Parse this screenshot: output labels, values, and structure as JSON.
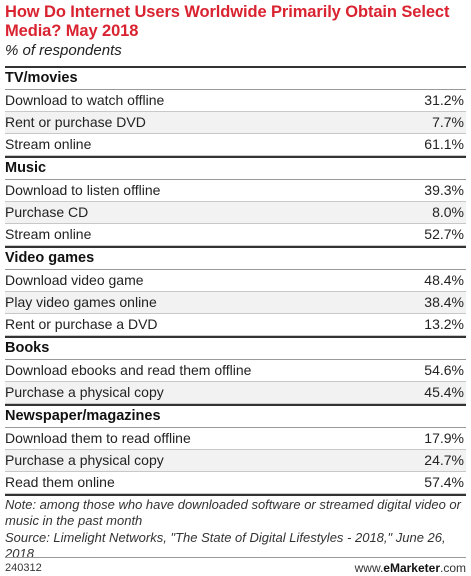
{
  "header": {
    "title": "How Do Internet Users Worldwide Primarily Obtain Select Media? May 2018",
    "subtitle": "% of respondents"
  },
  "chart_data": {
    "type": "table",
    "groups": [
      {
        "name": "TV/movies",
        "rows": [
          {
            "label": "Download to watch offline",
            "value": "31.2%"
          },
          {
            "label": "Rent or purchase DVD",
            "value": "7.7%"
          },
          {
            "label": "Stream online",
            "value": "61.1%"
          }
        ]
      },
      {
        "name": "Music",
        "rows": [
          {
            "label": "Download to listen offline",
            "value": "39.3%"
          },
          {
            "label": "Purchase CD",
            "value": "8.0%"
          },
          {
            "label": "Stream online",
            "value": "52.7%"
          }
        ]
      },
      {
        "name": "Video games",
        "rows": [
          {
            "label": "Download video game",
            "value": "48.4%"
          },
          {
            "label": "Play video games online",
            "value": "38.4%"
          },
          {
            "label": "Rent or purchase a DVD",
            "value": "13.2%"
          }
        ]
      },
      {
        "name": "Books",
        "rows": [
          {
            "label": "Download ebooks and read them offline",
            "value": "54.6%"
          },
          {
            "label": "Purchase a physical copy",
            "value": "45.4%"
          }
        ]
      },
      {
        "name": "Newspaper/magazines",
        "rows": [
          {
            "label": "Download them to read offline",
            "value": "17.9%"
          },
          {
            "label": "Purchase a physical copy",
            "value": "24.7%"
          },
          {
            "label": "Read them online",
            "value": "57.4%"
          }
        ]
      }
    ]
  },
  "notes": {
    "note": "Note: among those who have downloaded software or streamed digital video or music in the past month",
    "source": "Source: Limelight Networks, \"The State of Digital Lifestyles - 2018,\" June 26, 2018"
  },
  "footer": {
    "chart_id": "240312",
    "brand_prefix": "www.",
    "brand_name": "eMarketer",
    "brand_suffix": ".com"
  },
  "colors": {
    "title": "#d92330",
    "row_alt": "#f2f2f2"
  }
}
